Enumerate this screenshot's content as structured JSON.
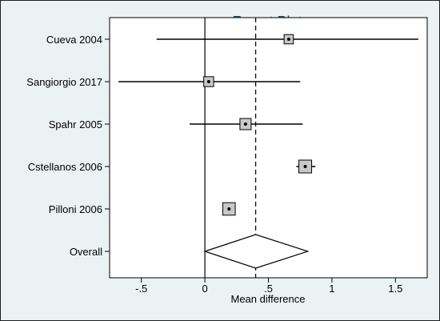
{
  "chart_data": {
    "type": "forest",
    "title": "Forest Plot",
    "xlabel": "Mean difference",
    "ylabel": "",
    "xlim": [
      -0.75,
      1.75
    ],
    "xticks": [
      -0.5,
      0,
      0.5,
      1,
      1.5
    ],
    "xtick_labels": [
      "-.5",
      "0",
      ".5",
      "1",
      "1.5"
    ],
    "null_line": 0,
    "overall_line": 0.4,
    "grid": false,
    "studies": [
      {
        "name": "Cueva 2004",
        "estimate": 0.66,
        "ci_low": -0.38,
        "ci_high": 1.68,
        "weight": 0.45
      },
      {
        "name": "Sangiorgio 2017",
        "estimate": 0.03,
        "ci_low": -0.68,
        "ci_high": 0.75,
        "weight": 0.55
      },
      {
        "name": "Spahr 2005",
        "estimate": 0.32,
        "ci_low": -0.12,
        "ci_high": 0.77,
        "weight": 0.75
      },
      {
        "name": "Cstellanos 2006",
        "estimate": 0.79,
        "ci_low": 0.72,
        "ci_high": 0.87,
        "weight": 1.0
      },
      {
        "name": "Pilloni 2006",
        "estimate": 0.19,
        "ci_low": 0.15,
        "ci_high": 0.23,
        "weight": 0.95
      }
    ],
    "overall": {
      "name": "Overall",
      "estimate": 0.4,
      "ci_low": 0.0,
      "ci_high": 0.81
    }
  },
  "colors": {
    "background": "#eaf2f3",
    "plot_area": "#ffffff",
    "title": "#1a476f",
    "box_fill": "#c8c8c8",
    "line": "#000000"
  }
}
